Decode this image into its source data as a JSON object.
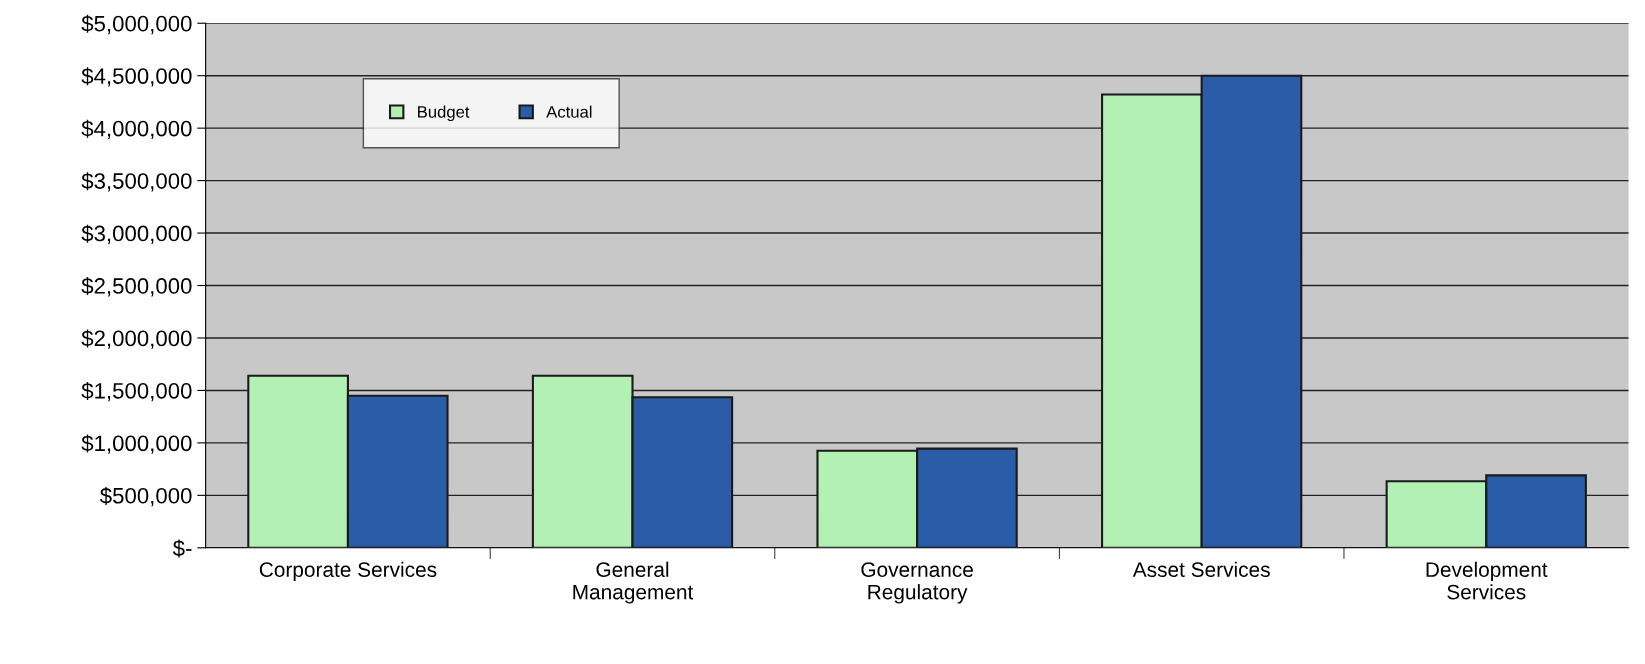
{
  "chart_data": {
    "type": "bar",
    "categories": [
      "Corporate Services",
      "General\nManagement",
      "Governance\nRegulatory",
      "Asset Services",
      "Development\nServices"
    ],
    "series": [
      {
        "name": "Budget",
        "color": "#b3f0b3",
        "values": [
          1640000,
          1640000,
          925000,
          4320000,
          635000
        ]
      },
      {
        "name": "Actual",
        "color": "#2a5ca8",
        "values": [
          1450000,
          1435000,
          945000,
          4500000,
          690000
        ]
      }
    ],
    "ylim": [
      0,
      5000000
    ],
    "yticks": [
      {
        "value": 0,
        "label": "$-"
      },
      {
        "value": 500000,
        "label": "$500,000"
      },
      {
        "value": 1000000,
        "label": "$1,000,000"
      },
      {
        "value": 1500000,
        "label": "$1,500,000"
      },
      {
        "value": 2000000,
        "label": "$2,000,000"
      },
      {
        "value": 2500000,
        "label": "$2,500,000"
      },
      {
        "value": 3000000,
        "label": "$3,000,000"
      },
      {
        "value": 3500000,
        "label": "$3,500,000"
      },
      {
        "value": 4000000,
        "label": "$4,000,000"
      },
      {
        "value": 4500000,
        "label": "$4,500,000"
      },
      {
        "value": 5000000,
        "label": "$5,000,000"
      }
    ],
    "grid": "y",
    "legend": "top left"
  }
}
